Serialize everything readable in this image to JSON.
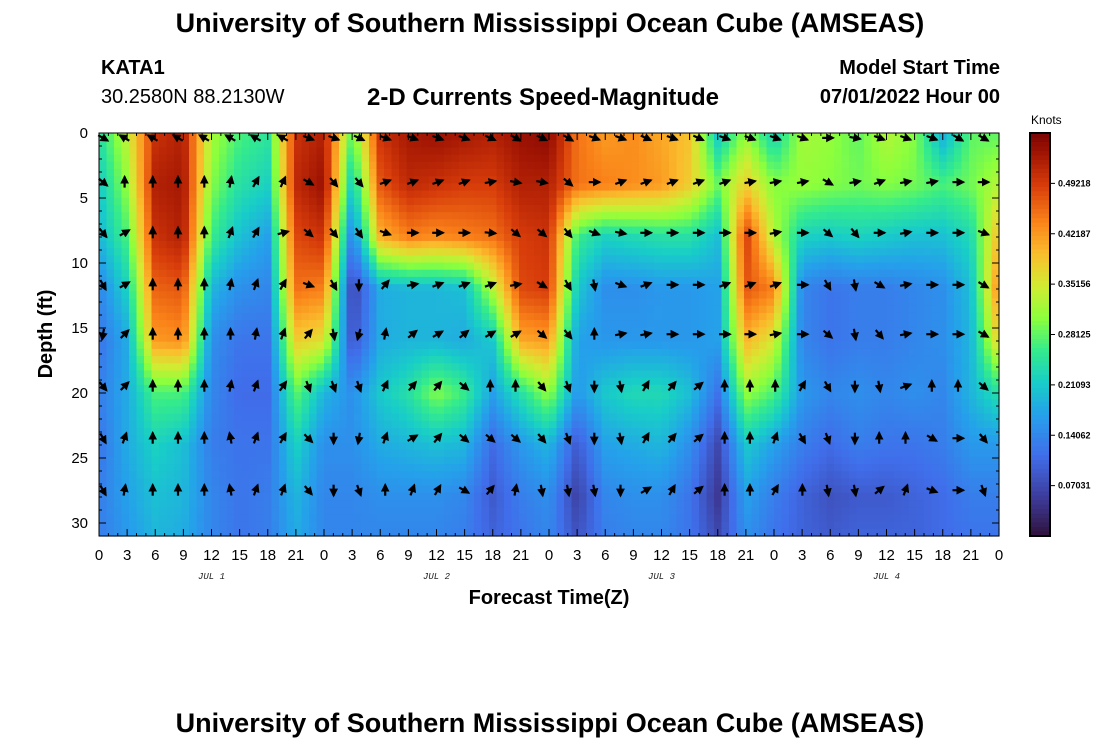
{
  "header": {
    "title": "University of Southern Mississippi Ocean Cube (AMSEAS)",
    "station": "KATA1",
    "coords": "30.2580N  88.2130W",
    "product": "2-D Currents Speed-Magnitude",
    "model_start_label": "Model Start Time",
    "model_start_value": "07/01/2022 Hour 00"
  },
  "footer": {
    "title": "University of Southern Mississippi Ocean Cube (AMSEAS)"
  },
  "chart_data": {
    "type": "heatmap",
    "title": "2-D Currents Speed-Magnitude",
    "xlabel": "Forecast Time(Z)",
    "ylabel": "Depth (ft)",
    "x_ticks": [
      "0",
      "3",
      "6",
      "9",
      "12",
      "15",
      "18",
      "21",
      "0",
      "3",
      "6",
      "9",
      "12",
      "15",
      "18",
      "21",
      "0",
      "3",
      "6",
      "9",
      "12",
      "15",
      "18",
      "21",
      "0",
      "3",
      "6",
      "9",
      "12",
      "15",
      "18",
      "21",
      "0"
    ],
    "x_range_hours": [
      0,
      96
    ],
    "date_labels": [
      {
        "label": "JUL 1",
        "hour": 12
      },
      {
        "label": "JUL 2",
        "hour": 36
      },
      {
        "label": "JUL 3",
        "hour": 60
      },
      {
        "label": "JUL 4",
        "hour": 84
      }
    ],
    "y_ticks": [
      "0",
      "5",
      "10",
      "15",
      "20",
      "25",
      "30"
    ],
    "y_range_ft": [
      0,
      31
    ],
    "colorbar": {
      "unit": "Knots",
      "range": [
        0,
        0.5625
      ],
      "ticks": [
        "0.49218",
        "0.42187",
        "0.35156",
        "0.28125",
        "0.21093",
        "0.14062",
        "0.07031"
      ],
      "tick_values": [
        0.49218,
        0.42187,
        0.35156,
        0.28125,
        0.21093,
        0.14062,
        0.07031
      ]
    },
    "speed_knots": {
      "depth_rows_ft": [
        0,
        4,
        8,
        12,
        16,
        20,
        24,
        28,
        31
      ],
      "time_cols_hours": [
        0,
        3,
        6,
        9,
        12,
        15,
        18,
        21,
        24,
        27,
        30,
        33,
        36,
        39,
        42,
        45,
        48,
        51,
        54,
        57,
        60,
        63,
        66,
        69,
        72,
        75,
        78,
        81,
        84,
        87,
        90,
        93,
        96
      ],
      "values": [
        [
          0.24,
          0.34,
          0.5,
          0.52,
          0.32,
          0.27,
          0.25,
          0.5,
          0.52,
          0.28,
          0.5,
          0.53,
          0.54,
          0.53,
          0.52,
          0.54,
          0.55,
          0.45,
          0.42,
          0.43,
          0.41,
          0.39,
          0.21,
          0.31,
          0.22,
          0.32,
          0.31,
          0.28,
          0.33,
          0.3,
          0.18,
          0.28,
          0.28
        ],
        [
          0.21,
          0.31,
          0.52,
          0.53,
          0.3,
          0.24,
          0.22,
          0.51,
          0.54,
          0.21,
          0.47,
          0.51,
          0.5,
          0.49,
          0.49,
          0.52,
          0.52,
          0.45,
          0.44,
          0.43,
          0.42,
          0.38,
          0.29,
          0.38,
          0.3,
          0.31,
          0.3,
          0.29,
          0.3,
          0.29,
          0.27,
          0.29,
          0.33
        ],
        [
          0.19,
          0.27,
          0.5,
          0.52,
          0.26,
          0.2,
          0.17,
          0.48,
          0.5,
          0.13,
          0.4,
          0.44,
          0.43,
          0.44,
          0.45,
          0.49,
          0.5,
          0.26,
          0.22,
          0.23,
          0.24,
          0.24,
          0.2,
          0.49,
          0.33,
          0.22,
          0.21,
          0.22,
          0.21,
          0.2,
          0.2,
          0.23,
          0.4
        ],
        [
          0.14,
          0.22,
          0.46,
          0.47,
          0.19,
          0.15,
          0.14,
          0.45,
          0.44,
          0.06,
          0.18,
          0.19,
          0.19,
          0.2,
          0.33,
          0.48,
          0.49,
          0.21,
          0.15,
          0.15,
          0.16,
          0.16,
          0.17,
          0.47,
          0.44,
          0.14,
          0.12,
          0.13,
          0.13,
          0.14,
          0.15,
          0.2,
          0.44
        ],
        [
          0.12,
          0.18,
          0.42,
          0.43,
          0.15,
          0.12,
          0.12,
          0.38,
          0.36,
          0.08,
          0.18,
          0.19,
          0.19,
          0.18,
          0.21,
          0.41,
          0.42,
          0.17,
          0.16,
          0.16,
          0.16,
          0.16,
          0.17,
          0.4,
          0.35,
          0.14,
          0.12,
          0.13,
          0.13,
          0.14,
          0.15,
          0.19,
          0.38
        ],
        [
          0.13,
          0.18,
          0.27,
          0.27,
          0.14,
          0.11,
          0.11,
          0.28,
          0.19,
          0.15,
          0.21,
          0.24,
          0.3,
          0.26,
          0.17,
          0.24,
          0.31,
          0.16,
          0.21,
          0.23,
          0.23,
          0.2,
          0.12,
          0.31,
          0.27,
          0.16,
          0.14,
          0.15,
          0.14,
          0.15,
          0.14,
          0.19,
          0.24
        ],
        [
          0.12,
          0.18,
          0.22,
          0.2,
          0.13,
          0.12,
          0.12,
          0.22,
          0.15,
          0.15,
          0.18,
          0.19,
          0.2,
          0.19,
          0.11,
          0.16,
          0.19,
          0.09,
          0.17,
          0.18,
          0.19,
          0.15,
          0.07,
          0.21,
          0.17,
          0.13,
          0.11,
          0.13,
          0.12,
          0.12,
          0.13,
          0.16,
          0.16
        ],
        [
          0.13,
          0.17,
          0.2,
          0.19,
          0.14,
          0.12,
          0.13,
          0.19,
          0.14,
          0.14,
          0.15,
          0.15,
          0.15,
          0.14,
          0.09,
          0.13,
          0.15,
          0.06,
          0.14,
          0.15,
          0.15,
          0.12,
          0.05,
          0.17,
          0.13,
          0.1,
          0.08,
          0.09,
          0.09,
          0.1,
          0.11,
          0.13,
          0.13
        ],
        [
          0.13,
          0.16,
          0.19,
          0.18,
          0.14,
          0.12,
          0.13,
          0.18,
          0.14,
          0.14,
          0.14,
          0.14,
          0.14,
          0.13,
          0.1,
          0.12,
          0.14,
          0.08,
          0.13,
          0.14,
          0.14,
          0.12,
          0.07,
          0.15,
          0.12,
          0.1,
          0.09,
          0.1,
          0.1,
          0.1,
          0.11,
          0.12,
          0.12
        ]
      ]
    },
    "direction_deg": {
      "depth_rows_ft": [
        0.3,
        3.7,
        7.6,
        11.6,
        15.4,
        19.4,
        23.4,
        27.4
      ],
      "time_cols_hours": [
        0.0,
        2.3,
        5.3,
        8.0,
        10.8,
        13.6,
        16.3,
        19.2,
        21.9,
        24.6,
        27.3,
        30.1,
        33.0,
        35.7,
        38.5,
        41.3,
        44.0,
        46.8,
        49.6,
        52.4,
        55.2,
        57.9,
        60.7,
        63.5,
        66.3,
        69.0,
        71.7,
        74.6,
        77.3,
        80.2,
        82.8,
        85.6,
        88.4,
        91.2,
        93.9
      ],
      "values": [
        [
          120,
          300,
          300,
          300,
          300,
          300,
          300,
          300,
          110,
          110,
          115,
          110,
          110,
          110,
          110,
          115,
          120,
          115,
          120,
          110,
          110,
          115,
          110,
          115,
          110,
          110,
          110,
          110,
          90,
          100,
          110,
          110,
          110,
          120,
          120
        ],
        [
          130,
          0,
          0,
          0,
          0,
          10,
          30,
          25,
          120,
          140,
          140,
          70,
          70,
          70,
          70,
          80,
          100,
          100,
          130,
          90,
          70,
          70,
          70,
          70,
          70,
          80,
          80,
          80,
          120,
          80,
          70,
          80,
          80,
          90,
          90
        ],
        [
          140,
          60,
          0,
          0,
          0,
          20,
          30,
          75,
          130,
          140,
          145,
          110,
          90,
          90,
          90,
          95,
          130,
          130,
          140,
          110,
          100,
          90,
          90,
          90,
          90,
          90,
          80,
          90,
          130,
          140,
          90,
          80,
          90,
          90,
          110
        ],
        [
          150,
          60,
          0,
          0,
          0,
          10,
          20,
          30,
          110,
          150,
          180,
          40,
          80,
          70,
          70,
          70,
          80,
          120,
          150,
          170,
          110,
          70,
          90,
          90,
          70,
          70,
          70,
          90,
          150,
          170,
          120,
          80,
          90,
          90,
          120
        ],
        [
          190,
          45,
          0,
          0,
          0,
          0,
          10,
          20,
          40,
          170,
          195,
          10,
          50,
          60,
          50,
          60,
          60,
          130,
          140,
          0,
          80,
          80,
          90,
          90,
          90,
          90,
          80,
          90,
          130,
          170,
          140,
          80,
          90,
          90,
          120
        ],
        [
          140,
          45,
          0,
          0,
          0,
          10,
          20,
          35,
          160,
          160,
          160,
          25,
          40,
          40,
          130,
          0,
          0,
          140,
          160,
          180,
          170,
          30,
          40,
          50,
          0,
          0,
          0,
          30,
          150,
          180,
          170,
          70,
          0,
          0,
          130
        ],
        [
          150,
          20,
          0,
          0,
          0,
          350,
          20,
          30,
          135,
          180,
          190,
          20,
          60,
          40,
          130,
          130,
          130,
          140,
          160,
          180,
          170,
          30,
          40,
          50,
          0,
          0,
          20,
          150,
          160,
          180,
          0,
          0,
          120,
          90,
          140
        ],
        [
          150,
          10,
          0,
          0,
          0,
          350,
          20,
          20,
          140,
          180,
          160,
          0,
          20,
          30,
          120,
          40,
          10,
          170,
          170,
          170,
          180,
          60,
          30,
          50,
          0,
          0,
          30,
          0,
          170,
          170,
          50,
          20,
          110,
          90,
          160
        ]
      ]
    }
  }
}
